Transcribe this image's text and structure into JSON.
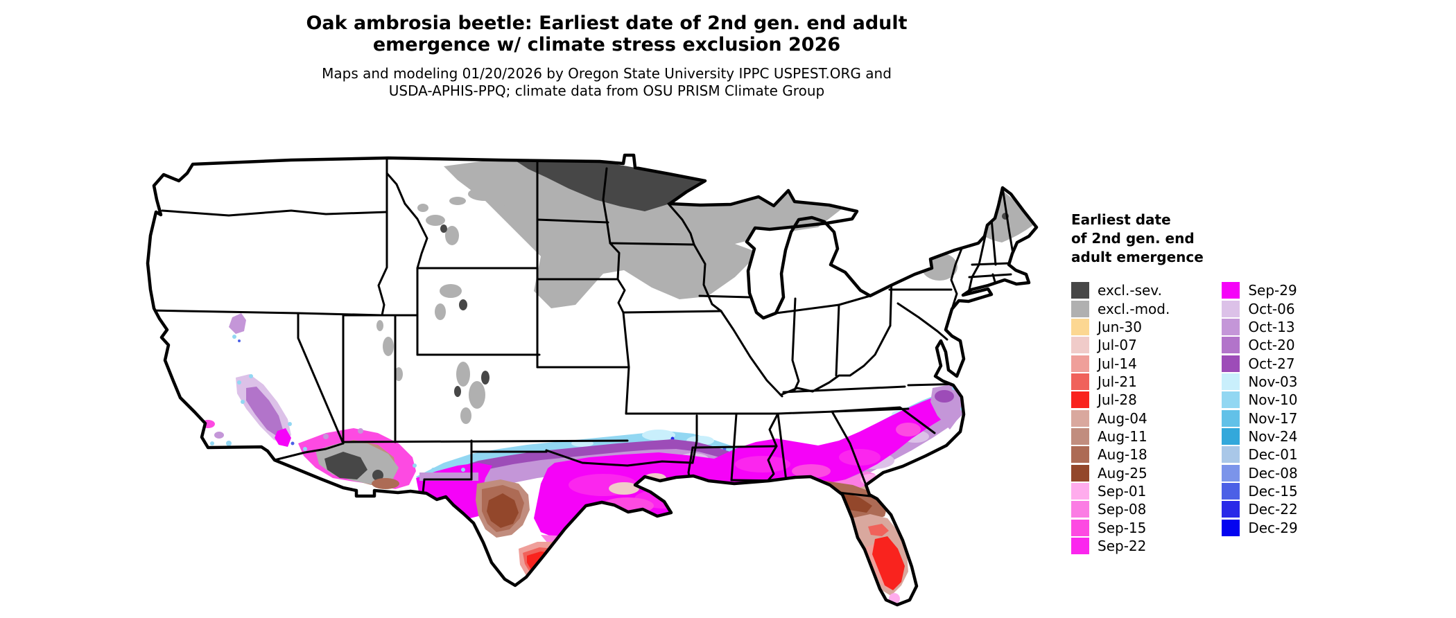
{
  "title": {
    "line1": "Oak ambrosia beetle: Earliest date of 2nd gen. end adult",
    "line2": "emergence w/ climate stress exclusion 2026"
  },
  "subtitle": {
    "line1": "Maps and modeling 01/20/2026 by Oregon State University IPPC USPEST.ORG and",
    "line2": "USDA-APHIS-PPQ; climate data from OSU PRISM Climate Group"
  },
  "legend": {
    "title_lines": [
      "Earliest date",
      "of 2nd gen. end",
      "adult emergence"
    ],
    "column1": [
      {
        "label": "excl.-sev.",
        "color": "#474747"
      },
      {
        "label": "excl.-mod.",
        "color": "#b0b0b0"
      },
      {
        "label": "Jun-30",
        "color": "#fcd792"
      },
      {
        "label": "Jul-07",
        "color": "#f0cbc9"
      },
      {
        "label": "Jul-14",
        "color": "#ef9f9a"
      },
      {
        "label": "Jul-21",
        "color": "#f0625b"
      },
      {
        "label": "Jul-28",
        "color": "#f9231e"
      },
      {
        "label": "Aug-04",
        "color": "#d9a89e"
      },
      {
        "label": "Aug-11",
        "color": "#c18d7e"
      },
      {
        "label": "Aug-18",
        "color": "#ad6b55"
      },
      {
        "label": "Aug-25",
        "color": "#93472b"
      },
      {
        "label": "Sep-01",
        "color": "#ffaced"
      },
      {
        "label": "Sep-08",
        "color": "#fb7de4"
      },
      {
        "label": "Sep-15",
        "color": "#fd4ae2"
      },
      {
        "label": "Sep-22",
        "color": "#fb26ee"
      }
    ],
    "column2": [
      {
        "label": "Sep-29",
        "color": "#f503f8"
      },
      {
        "label": "Oct-06",
        "color": "#dcc1e8"
      },
      {
        "label": "Oct-13",
        "color": "#c496d8"
      },
      {
        "label": "Oct-20",
        "color": "#b274ca"
      },
      {
        "label": "Oct-27",
        "color": "#9d4cb8"
      },
      {
        "label": "Nov-03",
        "color": "#c9effc"
      },
      {
        "label": "Nov-10",
        "color": "#92d7f2"
      },
      {
        "label": "Nov-17",
        "color": "#62c1e8"
      },
      {
        "label": "Nov-24",
        "color": "#33a8db"
      },
      {
        "label": "Dec-01",
        "color": "#a9c7e8"
      },
      {
        "label": "Dec-08",
        "color": "#7b94ea"
      },
      {
        "label": "Dec-15",
        "color": "#4c60e6"
      },
      {
        "label": "Dec-22",
        "color": "#2a2ae8"
      },
      {
        "label": "Dec-29",
        "color": "#0404f0"
      }
    ]
  },
  "map": {
    "region": "Contiguous United States",
    "outline_color": "#000000",
    "background_color": "#ffffff"
  }
}
